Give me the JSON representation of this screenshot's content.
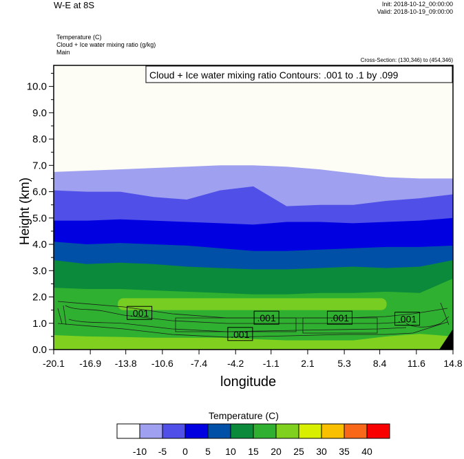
{
  "header": {
    "title": "W-E at 8S",
    "init": "Init: 2018-10-12_00:00:00",
    "valid": "Valid: 2018-10-19_09:00:00",
    "fields": [
      "Temperature   (C)",
      "Cloud + Ice water mixing ratio   (g/kg)",
      "Main"
    ],
    "cross_section": "Cross-Section: (130,346) to (454,346)"
  },
  "chart_data": {
    "type": "heatmap",
    "xlabel": "longitude",
    "ylabel": "Height (km)",
    "xticks": [
      "-20.1",
      "-16.9",
      "-13.8",
      "-10.6",
      "-7.4",
      "-4.2",
      "-1.1",
      "2.1",
      "5.3",
      "8.4",
      "11.6",
      "14.8"
    ],
    "yticks": [
      "0.0",
      "1.0",
      "2.0",
      "3.0",
      "4.0",
      "5.0",
      "6.0",
      "7.0",
      "8.0",
      "9.0",
      "10.0"
    ],
    "xlim": [
      -20.1,
      14.8
    ],
    "ylim": [
      0,
      10.8
    ],
    "overlay_label": "Cloud + Ice water mixing ratio Contours: .001 to .1 by .099",
    "contour_labels": [
      {
        "text": ".001",
        "x": -12.6,
        "y": 1.38
      },
      {
        "text": ".001",
        "x": -3.8,
        "y": 0.58
      },
      {
        "text": ".001",
        "x": -1.5,
        "y": 1.2
      },
      {
        "text": ".001",
        "x": 4.9,
        "y": 1.2
      },
      {
        "text": ".001",
        "x": 10.8,
        "y": 1.16
      }
    ],
    "colorbar": {
      "title": "Temperature  (C)",
      "colors": [
        "#ffffff",
        "#a0a0f0",
        "#5050e8",
        "#0000e0",
        "#0050a8",
        "#0a8a3a",
        "#30b030",
        "#80d020",
        "#d8f000",
        "#f8c000",
        "#f86818",
        "#f80000"
      ],
      "labels": [
        "-10",
        "-5",
        "0",
        "5",
        "10",
        "15",
        "20",
        "25",
        "30",
        "35",
        "40"
      ]
    },
    "temperature_bands": [
      {
        "level": "-10",
        "color": "#a0a0f0",
        "top": [
          6.75,
          6.8,
          6.85,
          6.9,
          6.95,
          7.0,
          7.0,
          6.95,
          6.85,
          6.7,
          6.55,
          6.5,
          6.5
        ]
      },
      {
        "level": "-5",
        "color": "#5050e8",
        "top": [
          6.05,
          6.0,
          6.0,
          5.8,
          5.7,
          6.05,
          6.2,
          5.45,
          5.5,
          5.5,
          5.65,
          5.75,
          5.9
        ]
      },
      {
        "level": "0",
        "color": "#0000e0",
        "top": [
          4.9,
          4.9,
          4.95,
          4.9,
          4.85,
          4.8,
          4.75,
          4.85,
          4.85,
          4.8,
          4.85,
          4.9,
          5.0
        ]
      },
      {
        "level": "5",
        "color": "#0050a8",
        "top": [
          4.1,
          4.0,
          4.05,
          4.0,
          3.95,
          3.85,
          3.75,
          3.75,
          3.8,
          3.85,
          3.9,
          3.9,
          3.95
        ]
      },
      {
        "level": "10",
        "color": "#0a8a3a",
        "top": [
          3.4,
          3.25,
          3.3,
          3.25,
          3.15,
          3.1,
          3.05,
          3.05,
          3.1,
          3.15,
          3.1,
          3.15,
          3.4
        ]
      },
      {
        "level": "15",
        "color": "#30b030",
        "top": [
          2.35,
          2.3,
          2.3,
          2.25,
          2.2,
          2.15,
          2.1,
          2.1,
          2.15,
          2.15,
          2.2,
          2.15,
          2.7
        ]
      },
      {
        "level": "20",
        "color": "#80d020",
        "top": [
          0.55,
          0.5,
          0.48,
          0.45,
          0.45,
          0.45,
          0.4,
          0.35,
          0.35,
          0.35,
          0.5,
          0.6,
          0.5
        ]
      }
    ],
    "light_patch": {
      "color": "#80d020",
      "x": [
        -14.5,
        9.0
      ],
      "top": 1.95,
      "bottom": 1.5
    }
  }
}
